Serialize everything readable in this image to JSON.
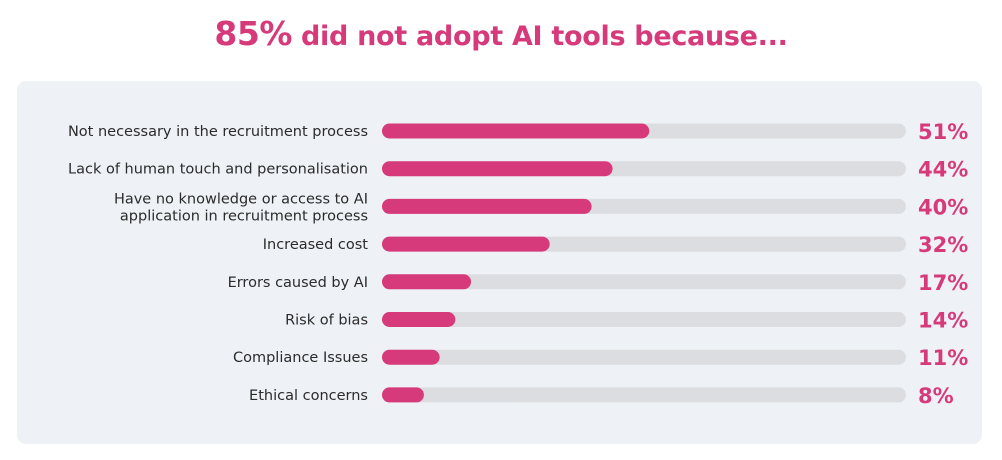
{
  "title": {
    "highlight": "85%",
    "rest": " did not adopt AI tools because..."
  },
  "colors": {
    "accent": "#d63a7a",
    "track": "#dcdde0",
    "panel": "#eef1f6",
    "label_text": "#2b2b2b"
  },
  "chart_data": {
    "type": "bar",
    "orientation": "horizontal",
    "categories": [
      "Not necessary in the recruitment process",
      "Lack of human touch and personalisation",
      "Have no knowledge or access to AI application in recruitment process",
      "Increased cost",
      "Errors caused by AI",
      "Risk of bias",
      "Compliance Issues",
      "Ethical concerns"
    ],
    "category_lines": [
      [
        "Not necessary in the recruitment process"
      ],
      [
        "Lack of human touch and personalisation"
      ],
      [
        "Have no knowledge or access to AI",
        "application in recruitment process"
      ],
      [
        "Increased cost"
      ],
      [
        "Errors caused by AI"
      ],
      [
        "Risk of bias"
      ],
      [
        "Compliance Issues"
      ],
      [
        "Ethical concerns"
      ]
    ],
    "values": [
      51,
      44,
      40,
      32,
      17,
      14,
      11,
      8
    ],
    "value_labels": [
      "51%",
      "44%",
      "40%",
      "32%",
      "17%",
      "14%",
      "11%",
      "8%"
    ],
    "xlim": [
      0,
      100
    ],
    "grid": false,
    "legend": "none"
  }
}
